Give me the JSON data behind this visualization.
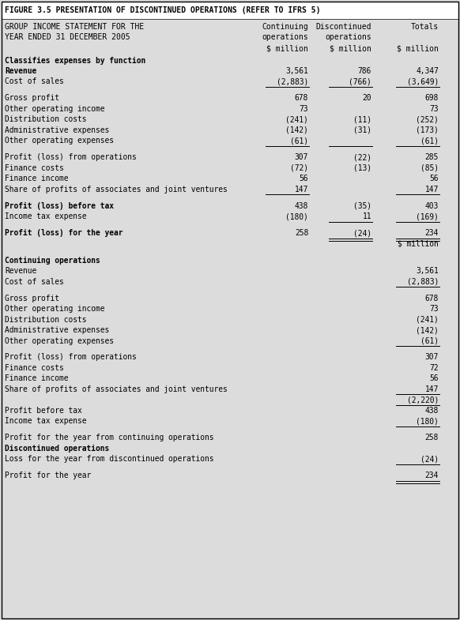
{
  "title": "FIGURE 3.5 PRESENTATION OF DISCONTINUED OPERATIONS (REFER TO IFRS 5)",
  "bg_color": "#DCDCDC",
  "white_color": "#FFFFFF",
  "rows": [
    {
      "label": "GROUP INCOME STATEMENT FOR THE",
      "bold": false,
      "values": [
        "Continuing",
        "Discontinued",
        "Totals"
      ],
      "ul": [],
      "dul": [],
      "type": "header1"
    },
    {
      "label": "YEAR ENDED 31 DECEMBER 2005",
      "bold": false,
      "values": [
        "operations",
        "operations",
        ""
      ],
      "ul": [],
      "dul": [],
      "type": "header2"
    },
    {
      "label": "",
      "bold": false,
      "values": [
        "$ million",
        "$ million",
        "$ million"
      ],
      "ul": [],
      "dul": [],
      "type": "header3"
    },
    {
      "label": "Classifies expenses by function",
      "bold": true,
      "values": [
        "",
        "",
        ""
      ],
      "ul": [],
      "dul": [],
      "type": "normal"
    },
    {
      "label": "Revenue",
      "bold": true,
      "values": [
        "3,561",
        "786",
        "4,347"
      ],
      "ul": [],
      "dul": [],
      "type": "normal"
    },
    {
      "label": "Cost of sales",
      "bold": false,
      "values": [
        "(2,883)",
        "(766)",
        "(3,649)"
      ],
      "ul": [
        0,
        1,
        2
      ],
      "dul": [],
      "type": "normal"
    },
    {
      "label": "",
      "bold": false,
      "values": [
        "",
        "",
        ""
      ],
      "ul": [],
      "dul": [],
      "type": "spacer"
    },
    {
      "label": "Gross profit",
      "bold": false,
      "values": [
        "678",
        "20",
        "698"
      ],
      "ul": [],
      "dul": [],
      "type": "normal"
    },
    {
      "label": "Other operating income",
      "bold": false,
      "values": [
        "73",
        "",
        "73"
      ],
      "ul": [],
      "dul": [],
      "type": "normal"
    },
    {
      "label": "Distribution costs",
      "bold": false,
      "values": [
        "(241)",
        "(11)",
        "(252)"
      ],
      "ul": [],
      "dul": [],
      "type": "normal"
    },
    {
      "label": "Administrative expenses",
      "bold": false,
      "values": [
        "(142)",
        "(31)",
        "(173)"
      ],
      "ul": [],
      "dul": [],
      "type": "normal"
    },
    {
      "label": "Other operating expenses",
      "bold": false,
      "values": [
        "(61)",
        "",
        "(61)"
      ],
      "ul": [
        0,
        1,
        2
      ],
      "dul": [],
      "type": "normal"
    },
    {
      "label": "",
      "bold": false,
      "values": [
        "",
        "",
        ""
      ],
      "ul": [],
      "dul": [],
      "type": "spacer"
    },
    {
      "label": "Profit (loss) from operations",
      "bold": false,
      "values": [
        "307",
        "(22)",
        "285"
      ],
      "ul": [],
      "dul": [],
      "type": "normal"
    },
    {
      "label": "Finance costs",
      "bold": false,
      "values": [
        "(72)",
        "(13)",
        "(85)"
      ],
      "ul": [],
      "dul": [],
      "type": "normal"
    },
    {
      "label": "Finance income",
      "bold": false,
      "values": [
        "56",
        "",
        "56"
      ],
      "ul": [],
      "dul": [],
      "type": "normal"
    },
    {
      "label": "Share of profits of associates and joint ventures",
      "bold": false,
      "values": [
        "147",
        "",
        "147"
      ],
      "ul": [
        0,
        2
      ],
      "dul": [],
      "type": "normal"
    },
    {
      "label": "",
      "bold": false,
      "values": [
        "",
        "",
        ""
      ],
      "ul": [],
      "dul": [],
      "type": "spacer"
    },
    {
      "label": "Profit (loss) before tax",
      "bold": true,
      "values": [
        "438",
        "(35)",
        "403"
      ],
      "ul": [],
      "dul": [],
      "type": "normal"
    },
    {
      "label": "Income tax expense",
      "bold": false,
      "values": [
        "(180)",
        "11",
        "(169)"
      ],
      "ul": [
        1,
        2
      ],
      "dul": [],
      "type": "normal"
    },
    {
      "label": "",
      "bold": false,
      "values": [
        "",
        "",
        ""
      ],
      "ul": [],
      "dul": [],
      "type": "spacer"
    },
    {
      "label": "Profit (loss) for the year",
      "bold": true,
      "values": [
        "258",
        "(24)",
        "234"
      ],
      "ul": [],
      "dul": [
        1,
        2
      ],
      "type": "normal"
    },
    {
      "label": "",
      "bold": false,
      "values": [
        "",
        "",
        "$ million"
      ],
      "ul": [],
      "dul": [],
      "type": "smillion"
    },
    {
      "label": "",
      "bold": false,
      "values": [
        "",
        "",
        ""
      ],
      "ul": [],
      "dul": [],
      "type": "spacer"
    },
    {
      "label": "Continuing operations",
      "bold": true,
      "values": [
        "",
        "",
        ""
      ],
      "ul": [],
      "dul": [],
      "type": "normal"
    },
    {
      "label": "Revenue",
      "bold": false,
      "values": [
        "",
        "",
        "3,561"
      ],
      "ul": [],
      "dul": [],
      "type": "normal"
    },
    {
      "label": "Cost of sales",
      "bold": false,
      "values": [
        "",
        "",
        "(2,883)"
      ],
      "ul": [
        2
      ],
      "dul": [],
      "type": "normal"
    },
    {
      "label": "",
      "bold": false,
      "values": [
        "",
        "",
        ""
      ],
      "ul": [],
      "dul": [],
      "type": "spacer"
    },
    {
      "label": "Gross profit",
      "bold": false,
      "values": [
        "",
        "",
        "678"
      ],
      "ul": [],
      "dul": [],
      "type": "normal"
    },
    {
      "label": "Other operating income",
      "bold": false,
      "values": [
        "",
        "",
        "73"
      ],
      "ul": [],
      "dul": [],
      "type": "normal"
    },
    {
      "label": "Distribution costs",
      "bold": false,
      "values": [
        "",
        "",
        "(241)"
      ],
      "ul": [],
      "dul": [],
      "type": "normal"
    },
    {
      "label": "Administrative expenses",
      "bold": false,
      "values": [
        "",
        "",
        "(142)"
      ],
      "ul": [],
      "dul": [],
      "type": "normal"
    },
    {
      "label": "Other operating expenses",
      "bold": false,
      "values": [
        "",
        "",
        "(61)"
      ],
      "ul": [
        2
      ],
      "dul": [],
      "type": "normal"
    },
    {
      "label": "",
      "bold": false,
      "values": [
        "",
        "",
        ""
      ],
      "ul": [],
      "dul": [],
      "type": "spacer"
    },
    {
      "label": "Profit (loss) from operations",
      "bold": false,
      "values": [
        "",
        "",
        "307"
      ],
      "ul": [],
      "dul": [],
      "type": "normal"
    },
    {
      "label": "Finance costs",
      "bold": false,
      "values": [
        "",
        "",
        "72"
      ],
      "ul": [],
      "dul": [],
      "type": "normal"
    },
    {
      "label": "Finance income",
      "bold": false,
      "values": [
        "",
        "",
        "56"
      ],
      "ul": [],
      "dul": [],
      "type": "normal"
    },
    {
      "label": "Share of profits of associates and joint ventures",
      "bold": false,
      "values": [
        "",
        "",
        "147"
      ],
      "ul": [
        2
      ],
      "dul": [],
      "type": "normal"
    },
    {
      "label": "",
      "bold": false,
      "values": [
        "",
        "",
        "(2,220)"
      ],
      "ul": [
        2
      ],
      "dul": [],
      "type": "normal"
    },
    {
      "label": "Profit before tax",
      "bold": false,
      "values": [
        "",
        "",
        "438"
      ],
      "ul": [],
      "dul": [],
      "type": "normal"
    },
    {
      "label": "Income tax expense",
      "bold": false,
      "values": [
        "",
        "",
        "(180)"
      ],
      "ul": [
        2
      ],
      "dul": [],
      "type": "normal"
    },
    {
      "label": "",
      "bold": false,
      "values": [
        "",
        "",
        ""
      ],
      "ul": [],
      "dul": [],
      "type": "spacer"
    },
    {
      "label": "Profit for the year from continuing operations",
      "bold": false,
      "values": [
        "",
        "",
        "258"
      ],
      "ul": [],
      "dul": [],
      "type": "normal"
    },
    {
      "label": "Discontinued operations",
      "bold": true,
      "values": [
        "",
        "",
        ""
      ],
      "ul": [],
      "dul": [],
      "type": "normal"
    },
    {
      "label": "Loss for the year from discontinued operations",
      "bold": false,
      "values": [
        "",
        "",
        "(24)"
      ],
      "ul": [
        2
      ],
      "dul": [],
      "type": "normal"
    },
    {
      "label": "",
      "bold": false,
      "values": [
        "",
        "",
        ""
      ],
      "ul": [],
      "dul": [],
      "type": "spacer"
    },
    {
      "label": "Profit for the year",
      "bold": false,
      "values": [
        "",
        "",
        "234"
      ],
      "ul": [],
      "dul": [
        2
      ],
      "type": "normal"
    }
  ]
}
